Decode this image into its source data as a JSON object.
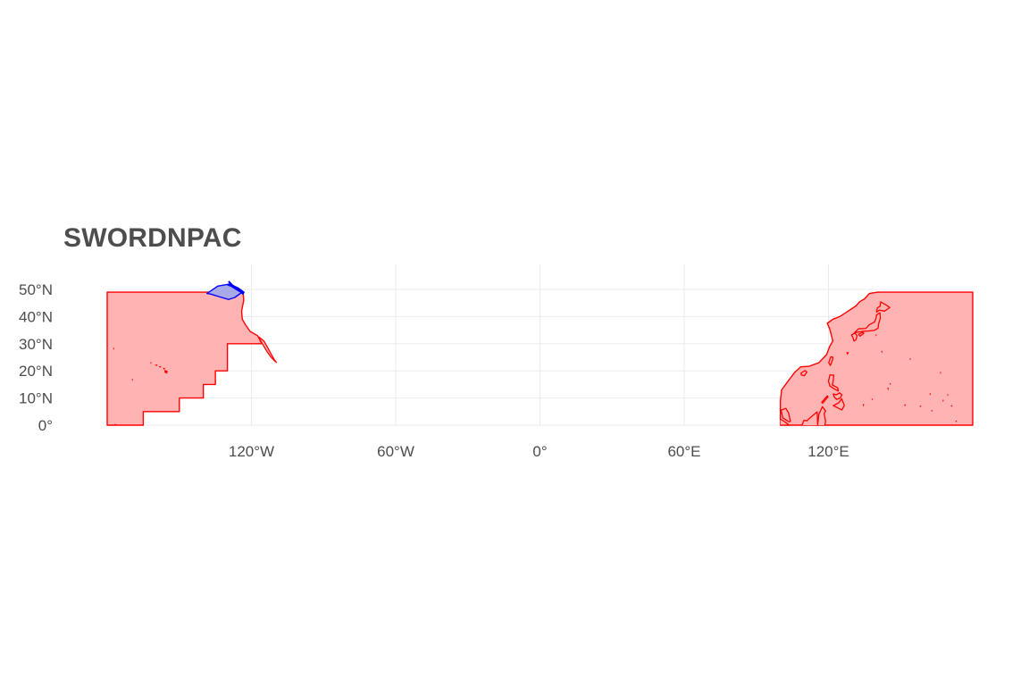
{
  "title": "SWORDNPAC",
  "colors": {
    "region_fill": "#ffb3b3",
    "region_stroke": "#ff0000",
    "highlight_fill": "#a9a9e8",
    "highlight_stroke": "#0000ff",
    "grid": "#ebebeb",
    "text": "#4d4d4d"
  },
  "axes": {
    "x": {
      "ticks": [
        {
          "value": -120,
          "label": "120°W"
        },
        {
          "value": -60,
          "label": "60°W"
        },
        {
          "value": 0,
          "label": "0°"
        },
        {
          "value": 60,
          "label": "60°E"
        },
        {
          "value": 120,
          "label": "120°E"
        }
      ]
    },
    "y": {
      "ticks": [
        {
          "value": 0,
          "label": "0°"
        },
        {
          "value": 10,
          "label": "10°N"
        },
        {
          "value": 20,
          "label": "20°N"
        },
        {
          "value": 30,
          "label": "30°N"
        },
        {
          "value": 40,
          "label": "40°N"
        },
        {
          "value": 50,
          "label": "50°N"
        }
      ]
    },
    "grid": true
  },
  "regions": [
    {
      "name": "eastern-pacific-region",
      "style": "red",
      "coords": [
        [
          -180,
          49
        ],
        [
          -123.5,
          49
        ],
        [
          -123.2,
          46
        ],
        [
          -124.1,
          42
        ],
        [
          -123.8,
          39
        ],
        [
          -122.5,
          37
        ],
        [
          -120.5,
          34.5
        ],
        [
          -117.5,
          33
        ],
        [
          -116.5,
          31.5
        ],
        [
          -115.8,
          30
        ],
        [
          -130,
          30
        ],
        [
          -130,
          20
        ],
        [
          -135,
          20
        ],
        [
          -135,
          15
        ],
        [
          -140,
          15
        ],
        [
          -140,
          10
        ],
        [
          -150,
          10
        ],
        [
          -150,
          5
        ],
        [
          -165,
          5
        ],
        [
          -165,
          0
        ],
        [
          -180,
          0
        ],
        [
          -180,
          49
        ]
      ]
    },
    {
      "name": "western-pacific-region",
      "style": "red",
      "coords": [
        [
          100,
          0
        ],
        [
          100,
          9
        ],
        [
          100.5,
          13
        ],
        [
          103,
          16
        ],
        [
          106,
          19.5
        ],
        [
          108.5,
          21.5
        ],
        [
          112,
          21.7
        ],
        [
          116,
          23
        ],
        [
          119.2,
          26
        ],
        [
          120.5,
          29
        ],
        [
          121.8,
          31
        ],
        [
          120.5,
          35.5
        ],
        [
          119.5,
          37.5
        ],
        [
          121.8,
          39
        ],
        [
          124.7,
          40
        ],
        [
          129,
          42.5
        ],
        [
          131.5,
          44
        ],
        [
          133,
          45.5
        ],
        [
          135,
          46.5
        ],
        [
          137,
          48.5
        ],
        [
          140.5,
          49
        ],
        [
          180,
          49
        ],
        [
          180,
          0
        ],
        [
          100,
          0
        ]
      ]
    },
    {
      "name": "pacific-northwest-highlight",
      "style": "blue",
      "coords": [
        [
          -138.5,
          48.5
        ],
        [
          -134,
          51.2
        ],
        [
          -129,
          52
        ],
        [
          -125.5,
          50.5
        ],
        [
          -123.5,
          49.2
        ],
        [
          -127,
          47
        ],
        [
          -129.5,
          46.3
        ],
        [
          -133,
          47.2
        ],
        [
          -137,
          48.3
        ],
        [
          -138.5,
          48.5
        ]
      ]
    }
  ],
  "coastlines": [
    {
      "name": "vancouver-island-coast",
      "style": "blue",
      "coords": [
        [
          -130,
          51.8
        ],
        [
          -128.5,
          51.3
        ],
        [
          -127.2,
          50.6
        ],
        [
          -126,
          49.9
        ],
        [
          -125,
          49.4
        ],
        [
          -124.2,
          49
        ],
        [
          -123.6,
          48.4
        ],
        [
          -123.2,
          48.9
        ],
        [
          -124.5,
          49.7
        ],
        [
          -126,
          50.4
        ],
        [
          -127.5,
          51.2
        ],
        [
          -128.5,
          52
        ],
        [
          -129.5,
          53
        ]
      ]
    },
    {
      "name": "japan-honshu",
      "style": "red",
      "coords": [
        [
          130.8,
          34
        ],
        [
          133,
          34.4
        ],
        [
          135,
          34.6
        ],
        [
          136.9,
          34.7
        ],
        [
          139,
          34.9
        ],
        [
          140.6,
          35.7
        ],
        [
          140.9,
          37.5
        ],
        [
          141.6,
          39.5
        ],
        [
          141.4,
          41.4
        ],
        [
          140,
          40.6
        ],
        [
          139.8,
          39.5
        ],
        [
          139.2,
          38
        ],
        [
          137,
          37
        ],
        [
          135.5,
          35.6
        ],
        [
          132.5,
          35.5
        ],
        [
          130.8,
          34
        ]
      ]
    },
    {
      "name": "japan-hokkaido",
      "style": "red",
      "coords": [
        [
          140,
          41.6
        ],
        [
          141.2,
          42.4
        ],
        [
          143.3,
          42
        ],
        [
          145.5,
          43.3
        ],
        [
          144.3,
          44.1
        ],
        [
          141.7,
          45.4
        ],
        [
          141.5,
          43.8
        ],
        [
          140.3,
          43.2
        ],
        [
          140,
          41.6
        ]
      ]
    },
    {
      "name": "japan-kyushu",
      "style": "red",
      "coords": [
        [
          129.6,
          33.2
        ],
        [
          130.9,
          33.9
        ],
        [
          131.9,
          33
        ],
        [
          131.4,
          31.4
        ],
        [
          130.6,
          31
        ],
        [
          130.2,
          32.2
        ],
        [
          129.6,
          33.2
        ]
      ]
    },
    {
      "name": "japan-shikoku",
      "style": "red",
      "coords": [
        [
          132.5,
          33.5
        ],
        [
          134.2,
          34.2
        ],
        [
          134.7,
          33.8
        ],
        [
          133.1,
          32.8
        ],
        [
          132.5,
          33.5
        ]
      ]
    },
    {
      "name": "taiwan",
      "style": "red",
      "coords": [
        [
          120.1,
          23
        ],
        [
          121,
          25.2
        ],
        [
          121.9,
          25
        ],
        [
          121.5,
          23.5
        ],
        [
          120.8,
          22
        ],
        [
          120.1,
          23
        ]
      ]
    },
    {
      "name": "hainan",
      "style": "red",
      "coords": [
        [
          108.6,
          19.2
        ],
        [
          110.2,
          20.1
        ],
        [
          111,
          19.6
        ],
        [
          110,
          18.2
        ],
        [
          108.7,
          18.5
        ],
        [
          108.6,
          19.2
        ]
      ]
    },
    {
      "name": "luzon",
      "style": "red",
      "coords": [
        [
          120.6,
          18.5
        ],
        [
          122.2,
          18.4
        ],
        [
          122,
          16.5
        ],
        [
          121.6,
          14.8
        ],
        [
          123.8,
          13.8
        ],
        [
          124.1,
          12.6
        ],
        [
          122.5,
          13.3
        ],
        [
          120.6,
          14.4
        ],
        [
          120,
          16.2
        ],
        [
          120.6,
          18.5
        ]
      ]
    },
    {
      "name": "mindanao",
      "style": "red",
      "coords": [
        [
          122,
          7.2
        ],
        [
          124.2,
          8.2
        ],
        [
          125.5,
          9.7
        ],
        [
          126.6,
          7.3
        ],
        [
          125.6,
          5.6
        ],
        [
          124,
          6.3
        ],
        [
          122,
          7.2
        ]
      ]
    },
    {
      "name": "visayas",
      "style": "red",
      "coords": [
        [
          122,
          11.5
        ],
        [
          123.3,
          11.2
        ],
        [
          124.6,
          11.9
        ],
        [
          125.6,
          11.2
        ],
        [
          124.9,
          10
        ],
        [
          123.4,
          9.5
        ],
        [
          122.4,
          10.4
        ],
        [
          122,
          11.5
        ]
      ]
    },
    {
      "name": "palawan",
      "style": "red",
      "coords": [
        [
          117.2,
          8.4
        ],
        [
          119.5,
          10.8
        ],
        [
          119.8,
          10.4
        ],
        [
          117.6,
          8.1
        ],
        [
          117.2,
          8.4
        ]
      ]
    },
    {
      "name": "borneo-north",
      "style": "red",
      "coords": [
        [
          115.5,
          0
        ],
        [
          116,
          4
        ],
        [
          117.5,
          6.8
        ],
        [
          118.8,
          5.2
        ],
        [
          118.2,
          4.2
        ],
        [
          118.8,
          1.5
        ],
        [
          118.5,
          0
        ]
      ]
    },
    {
      "name": "borneo-west",
      "style": "red",
      "coords": [
        [
          109,
          0
        ],
        [
          109.8,
          1.8
        ],
        [
          111,
          1.6
        ],
        [
          113,
          3.2
        ],
        [
          115.3,
          4.9
        ],
        [
          115.5,
          0
        ]
      ]
    },
    {
      "name": "malay-peninsula",
      "style": "red",
      "coords": [
        [
          100.3,
          5.5
        ],
        [
          101,
          2.7
        ],
        [
          103.5,
          1.3
        ],
        [
          104.2,
          1.4
        ],
        [
          103.4,
          4.5
        ],
        [
          102.3,
          6.2
        ],
        [
          100.3,
          5.5
        ]
      ]
    },
    {
      "name": "sumatra-tip",
      "style": "red",
      "coords": [
        [
          100,
          2.2
        ],
        [
          101.3,
          1.6
        ],
        [
          102.5,
          0.8
        ],
        [
          103.7,
          0
        ],
        [
          100,
          0
        ]
      ]
    },
    {
      "name": "baja-california",
      "style": "red",
      "coords": [
        [
          -117,
          32.5
        ],
        [
          -114.8,
          31
        ],
        [
          -113.2,
          28.5
        ],
        [
          -112,
          26.5
        ],
        [
          -110.4,
          24
        ],
        [
          -109.6,
          23.1
        ],
        [
          -110.5,
          23.8
        ],
        [
          -112,
          25.2
        ],
        [
          -113.6,
          27.2
        ],
        [
          -115.2,
          29.6
        ],
        [
          -116.5,
          31.5
        ],
        [
          -117,
          32.5
        ]
      ]
    }
  ],
  "islets": [
    {
      "name": "hawaii-big-island",
      "coords": [
        [
          -156,
          20.2
        ],
        [
          -155,
          19.9
        ],
        [
          -155.2,
          19.1
        ],
        [
          -156,
          19.5
        ],
        [
          -156,
          20.2
        ]
      ]
    },
    {
      "name": "hawaii-maui",
      "coords": [
        [
          -156.6,
          21
        ],
        [
          -156.1,
          20.9
        ],
        [
          -156.3,
          20.6
        ],
        [
          -156.6,
          21
        ]
      ]
    },
    {
      "name": "hawaii-oahu",
      "coords": [
        [
          -158.3,
          21.6
        ],
        [
          -157.7,
          21.5
        ],
        [
          -157.9,
          21.3
        ],
        [
          -158.3,
          21.6
        ]
      ]
    },
    {
      "name": "hawaii-kauai",
      "coords": [
        [
          -159.8,
          22.2
        ],
        [
          -159.3,
          22.2
        ],
        [
          -159.5,
          21.9
        ],
        [
          -159.8,
          22.2
        ]
      ]
    },
    {
      "name": "hawaii-nw-islet",
      "coords": [
        [
          -161.9,
          23
        ],
        [
          -161.7,
          23
        ],
        [
          -161.8,
          22.8
        ],
        [
          -161.9,
          23
        ]
      ]
    },
    {
      "name": "johnston-atoll",
      "coords": [
        [
          -169.6,
          16.8
        ],
        [
          -169.4,
          16.8
        ],
        [
          -169.5,
          16.6
        ],
        [
          -169.6,
          16.8
        ]
      ]
    },
    {
      "name": "midway",
      "coords": [
        [
          -177.4,
          28.3
        ],
        [
          -177.2,
          28.3
        ],
        [
          -177.3,
          28.1
        ],
        [
          -177.4,
          28.3
        ]
      ]
    },
    {
      "name": "equator-islet",
      "coords": [
        [
          -176.7,
          0.3
        ],
        [
          -176.5,
          0.3
        ],
        [
          -176.6,
          0.1
        ],
        [
          -176.7,
          0.3
        ]
      ]
    },
    {
      "name": "guam",
      "coords": [
        [
          144.6,
          13.6
        ],
        [
          144.9,
          13.6
        ],
        [
          144.8,
          13.2
        ],
        [
          144.6,
          13.6
        ]
      ]
    },
    {
      "name": "saipan",
      "coords": [
        [
          145.6,
          15.3
        ],
        [
          145.8,
          15.3
        ],
        [
          145.7,
          15.1
        ],
        [
          145.6,
          15.3
        ]
      ]
    },
    {
      "name": "bonin",
      "coords": [
        [
          142.1,
          27.2
        ],
        [
          142.3,
          27.2
        ],
        [
          142.2,
          26.9
        ],
        [
          142.1,
          27.2
        ]
      ]
    },
    {
      "name": "izu-islet",
      "coords": [
        [
          139.7,
          33.2
        ],
        [
          139.9,
          33.2
        ],
        [
          139.8,
          33
        ],
        [
          139.7,
          33.2
        ]
      ]
    },
    {
      "name": "palau",
      "coords": [
        [
          134.4,
          7.6
        ],
        [
          134.7,
          7.6
        ],
        [
          134.5,
          7.2
        ],
        [
          134.4,
          7.6
        ]
      ]
    },
    {
      "name": "yap",
      "coords": [
        [
          138.1,
          9.6
        ],
        [
          138.3,
          9.6
        ],
        [
          138.2,
          9.4
        ],
        [
          138.1,
          9.6
        ]
      ]
    },
    {
      "name": "chuuk",
      "coords": [
        [
          151.7,
          7.5
        ],
        [
          152,
          7.5
        ],
        [
          151.8,
          7.2
        ],
        [
          151.7,
          7.5
        ]
      ]
    },
    {
      "name": "pohnpei",
      "coords": [
        [
          158.1,
          7
        ],
        [
          158.4,
          7
        ],
        [
          158.2,
          6.8
        ],
        [
          158.1,
          7
        ]
      ]
    },
    {
      "name": "kwajalein",
      "coords": [
        [
          167.6,
          9.2
        ],
        [
          167.8,
          9.2
        ],
        [
          167.7,
          8.9
        ],
        [
          167.6,
          9.2
        ]
      ]
    },
    {
      "name": "majuro",
      "coords": [
        [
          171.1,
          7.2
        ],
        [
          171.4,
          7.2
        ],
        [
          171.2,
          7
        ],
        [
          171.1,
          7.2
        ]
      ]
    },
    {
      "name": "wake",
      "coords": [
        [
          166.5,
          19.4
        ],
        [
          166.7,
          19.4
        ],
        [
          166.6,
          19.2
        ],
        [
          166.5,
          19.4
        ]
      ]
    },
    {
      "name": "marcus",
      "coords": [
        [
          153.9,
          24.4
        ],
        [
          154.1,
          24.4
        ],
        [
          154,
          24.2
        ],
        [
          153.9,
          24.4
        ]
      ]
    },
    {
      "name": "enewetak",
      "coords": [
        [
          162.2,
          11.6
        ],
        [
          162.4,
          11.6
        ],
        [
          162.3,
          11.3
        ],
        [
          162.2,
          11.6
        ]
      ]
    },
    {
      "name": "kiribati-islet",
      "coords": [
        [
          173,
          1.5
        ],
        [
          173.2,
          1.5
        ],
        [
          173.1,
          1.3
        ],
        [
          173,
          1.5
        ]
      ]
    },
    {
      "name": "kosrae",
      "coords": [
        [
          162.9,
          5.4
        ],
        [
          163.1,
          5.4
        ],
        [
          163,
          5.2
        ],
        [
          162.9,
          5.4
        ]
      ]
    },
    {
      "name": "marshall-islet",
      "coords": [
        [
          169.5,
          11.2
        ],
        [
          169.7,
          11.2
        ],
        [
          169.6,
          11
        ],
        [
          169.5,
          11.2
        ]
      ]
    },
    {
      "name": "ryukyu-okinawa",
      "coords": [
        [
          127.6,
          26.7
        ],
        [
          128.3,
          26.8
        ],
        [
          127.9,
          26.1
        ],
        [
          127.6,
          26.7
        ]
      ]
    }
  ]
}
